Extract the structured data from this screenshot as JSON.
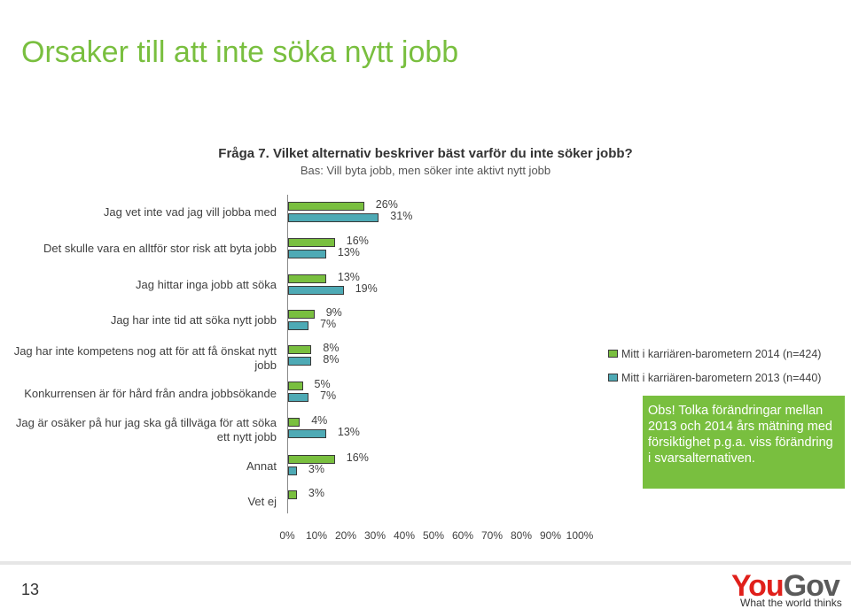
{
  "slide": {
    "title": "Orsaker till att inte söka nytt jobb",
    "page_number": "13"
  },
  "question": {
    "title": "Fråga 7. Vilket alternativ beskriver bäst varför du inte söker jobb?",
    "base": "Bas: Vill byta jobb, men söker inte aktivt nytt jobb"
  },
  "chart_data": {
    "type": "bar",
    "orientation": "horizontal",
    "categories": [
      "Jag vet inte vad jag vill jobba med",
      "Det skulle vara en alltför stor risk att byta jobb",
      "Jag hittar inga jobb att söka",
      "Jag har inte tid att söka nytt jobb",
      "Jag har inte kompetens nog att för att få önskat nytt jobb",
      "Konkurrensen är för hård från andra jobbsökande",
      "Jag är osäker på hur jag ska gå tillväga för att söka ett nytt jobb",
      "Annat",
      "Vet ej"
    ],
    "series": [
      {
        "name": "Mitt i karriären-barometern 2014 (n=424)",
        "color": "#79bf3f",
        "values": [
          26,
          16,
          13,
          9,
          8,
          5,
          4,
          16,
          3
        ],
        "labels": [
          "26%",
          "16%",
          "13%",
          "9%",
          "8%",
          "5%",
          "4%",
          "16%",
          "3%"
        ]
      },
      {
        "name": "Mitt i karriären-barometern 2013 (n=440)",
        "color": "#4eaab5",
        "values": [
          31,
          13,
          19,
          7,
          8,
          7,
          13,
          3,
          null
        ],
        "labels": [
          "31%",
          "13%",
          "19%",
          "7%",
          "8%",
          "7%",
          "13%",
          "3%",
          ""
        ]
      }
    ],
    "xlim": [
      0,
      100
    ],
    "xticks": [
      "0%",
      "10%",
      "20%",
      "30%",
      "40%",
      "50%",
      "60%",
      "70%",
      "80%",
      "90%",
      "100%"
    ],
    "grid": false,
    "legend_position": "right"
  },
  "note": {
    "text": "Obs! Tolka förändringar mellan 2013 och 2014 års mätning med försiktighet p.g.a. viss förändring i svarsalternativen."
  },
  "brand": {
    "logo_part1": "You",
    "logo_part2": "Gov",
    "tagline": "What the world thinks"
  }
}
